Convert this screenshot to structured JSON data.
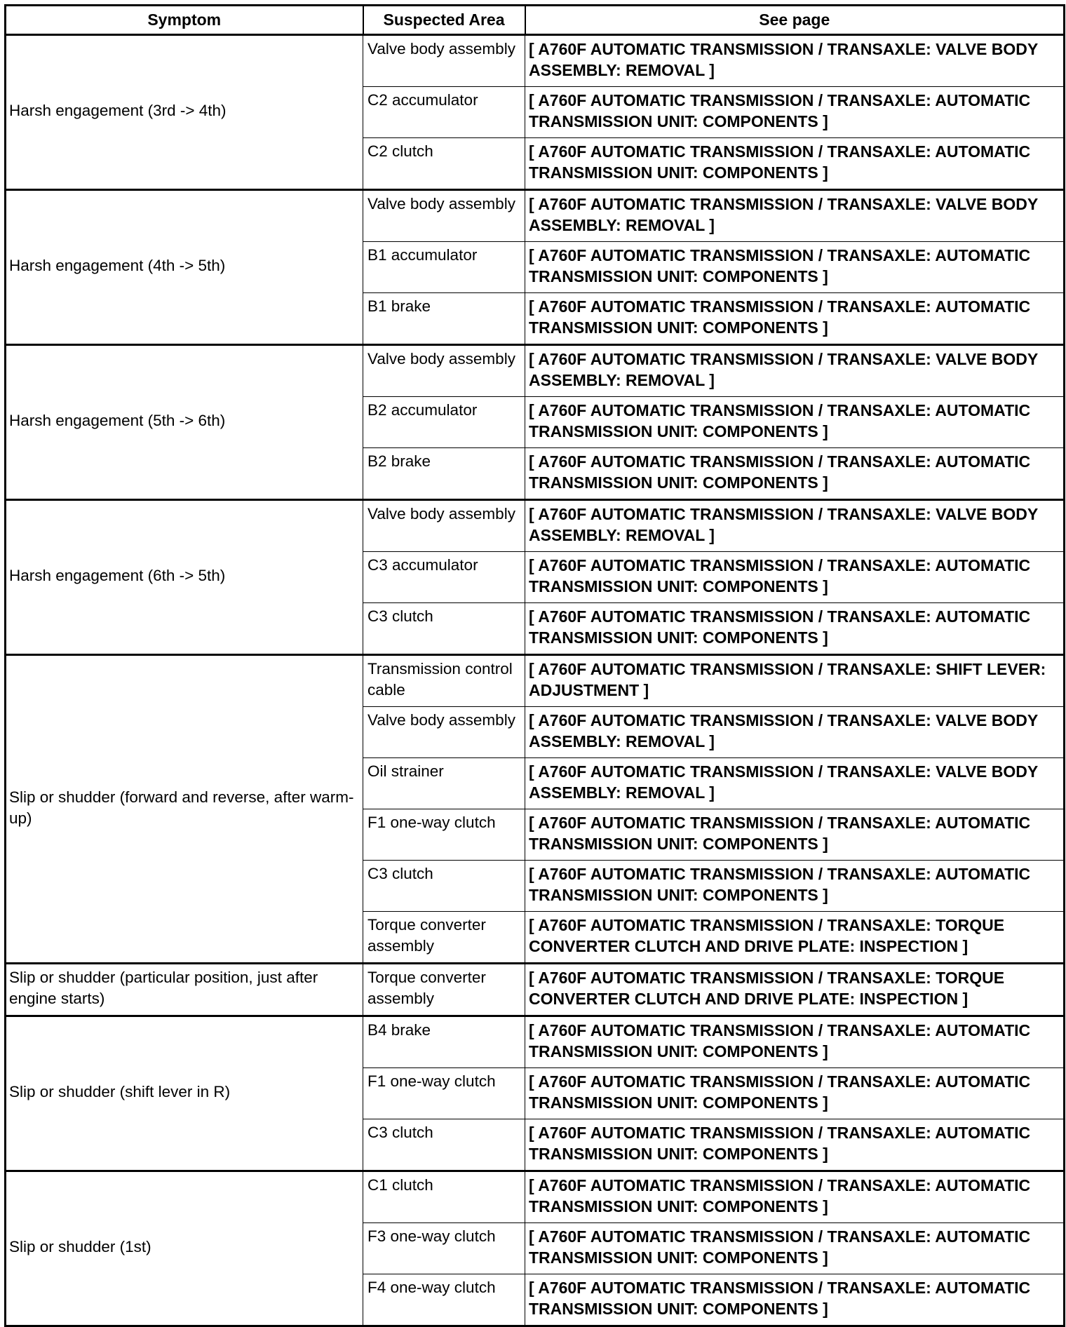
{
  "headers": {
    "symptom": "Symptom",
    "area": "Suspected Area",
    "page": "See page"
  },
  "groups": [
    {
      "symptom": "Harsh engagement (3rd -> 4th)",
      "rows": [
        {
          "area": "Valve body assembly",
          "page": "[ A760F AUTOMATIC TRANSMISSION / TRANSAXLE: VALVE BODY ASSEMBLY: REMOVAL ]"
        },
        {
          "area": "C2 accumulator",
          "page": "[ A760F AUTOMATIC TRANSMISSION / TRANSAXLE: AUTOMATIC TRANSMISSION UNIT: COMPONENTS ]"
        },
        {
          "area": "C2 clutch",
          "page": "[ A760F AUTOMATIC TRANSMISSION / TRANSAXLE: AUTOMATIC TRANSMISSION UNIT: COMPONENTS ]"
        }
      ]
    },
    {
      "symptom": "Harsh engagement (4th -> 5th)",
      "rows": [
        {
          "area": "Valve body assembly",
          "page": "[ A760F AUTOMATIC TRANSMISSION / TRANSAXLE: VALVE BODY ASSEMBLY: REMOVAL ]"
        },
        {
          "area": "B1 accumulator",
          "page": "[ A760F AUTOMATIC TRANSMISSION / TRANSAXLE: AUTOMATIC TRANSMISSION UNIT: COMPONENTS ]"
        },
        {
          "area": "B1 brake",
          "page": "[ A760F AUTOMATIC TRANSMISSION / TRANSAXLE: AUTOMATIC TRANSMISSION UNIT: COMPONENTS ]"
        }
      ]
    },
    {
      "symptom": "Harsh engagement (5th -> 6th)",
      "rows": [
        {
          "area": "Valve body assembly",
          "page": "[ A760F AUTOMATIC TRANSMISSION / TRANSAXLE: VALVE BODY ASSEMBLY: REMOVAL ]"
        },
        {
          "area": "B2 accumulator",
          "page": "[ A760F AUTOMATIC TRANSMISSION / TRANSAXLE: AUTOMATIC TRANSMISSION UNIT: COMPONENTS ]"
        },
        {
          "area": "B2 brake",
          "page": "[ A760F AUTOMATIC TRANSMISSION / TRANSAXLE: AUTOMATIC TRANSMISSION UNIT: COMPONENTS ]"
        }
      ]
    },
    {
      "symptom": "Harsh engagement (6th -> 5th)",
      "rows": [
        {
          "area": "Valve body assembly",
          "page": "[ A760F AUTOMATIC TRANSMISSION / TRANSAXLE: VALVE BODY ASSEMBLY: REMOVAL ]"
        },
        {
          "area": "C3 accumulator",
          "page": "[ A760F AUTOMATIC TRANSMISSION / TRANSAXLE: AUTOMATIC TRANSMISSION UNIT: COMPONENTS ]"
        },
        {
          "area": "C3 clutch",
          "page": "[ A760F AUTOMATIC TRANSMISSION / TRANSAXLE: AUTOMATIC TRANSMISSION UNIT: COMPONENTS ]"
        }
      ]
    },
    {
      "symptom": "Slip or shudder (forward and reverse, after warm-up)",
      "rows": [
        {
          "area": "Transmission control cable",
          "page": "[ A760F AUTOMATIC TRANSMISSION / TRANSAXLE: SHIFT LEVER: ADJUSTMENT ]"
        },
        {
          "area": "Valve body assembly",
          "page": "[ A760F AUTOMATIC TRANSMISSION / TRANSAXLE: VALVE BODY ASSEMBLY: REMOVAL ]"
        },
        {
          "area": "Oil strainer",
          "page": "[ A760F AUTOMATIC TRANSMISSION / TRANSAXLE: VALVE BODY ASSEMBLY: REMOVAL ]"
        },
        {
          "area": "F1 one-way clutch",
          "page": "[ A760F AUTOMATIC TRANSMISSION / TRANSAXLE: AUTOMATIC TRANSMISSION UNIT: COMPONENTS ]"
        },
        {
          "area": "C3 clutch",
          "page": "[ A760F AUTOMATIC TRANSMISSION / TRANSAXLE: AUTOMATIC TRANSMISSION UNIT: COMPONENTS ]"
        },
        {
          "area": "Torque converter assembly",
          "page": "[ A760F AUTOMATIC TRANSMISSION / TRANSAXLE: TORQUE CONVERTER CLUTCH AND DRIVE PLATE: INSPECTION ]"
        }
      ]
    },
    {
      "symptom": "Slip or shudder (particular position, just after engine starts)",
      "rows": [
        {
          "area": "Torque converter assembly",
          "page": "[ A760F AUTOMATIC TRANSMISSION / TRANSAXLE: TORQUE CONVERTER CLUTCH AND DRIVE PLATE: INSPECTION ]"
        }
      ]
    },
    {
      "symptom": "Slip or shudder (shift lever in R)",
      "rows": [
        {
          "area": "B4 brake",
          "page": "[ A760F AUTOMATIC TRANSMISSION / TRANSAXLE: AUTOMATIC TRANSMISSION UNIT: COMPONENTS ]"
        },
        {
          "area": "F1 one-way clutch",
          "page": "[ A760F AUTOMATIC TRANSMISSION / TRANSAXLE: AUTOMATIC TRANSMISSION UNIT: COMPONENTS ]"
        },
        {
          "area": "C3 clutch",
          "page": "[ A760F AUTOMATIC TRANSMISSION / TRANSAXLE: AUTOMATIC TRANSMISSION UNIT: COMPONENTS ]"
        }
      ]
    },
    {
      "symptom": "Slip or shudder (1st)",
      "rows": [
        {
          "area": "C1 clutch",
          "page": "[ A760F AUTOMATIC TRANSMISSION / TRANSAXLE: AUTOMATIC TRANSMISSION UNIT: COMPONENTS ]"
        },
        {
          "area": "F3 one-way clutch",
          "page": "[ A760F AUTOMATIC TRANSMISSION / TRANSAXLE: AUTOMATIC TRANSMISSION UNIT: COMPONENTS ]"
        },
        {
          "area": "F4 one-way clutch",
          "page": "[ A760F AUTOMATIC TRANSMISSION / TRANSAXLE: AUTOMATIC TRANSMISSION UNIT: COMPONENTS ]"
        }
      ]
    }
  ]
}
